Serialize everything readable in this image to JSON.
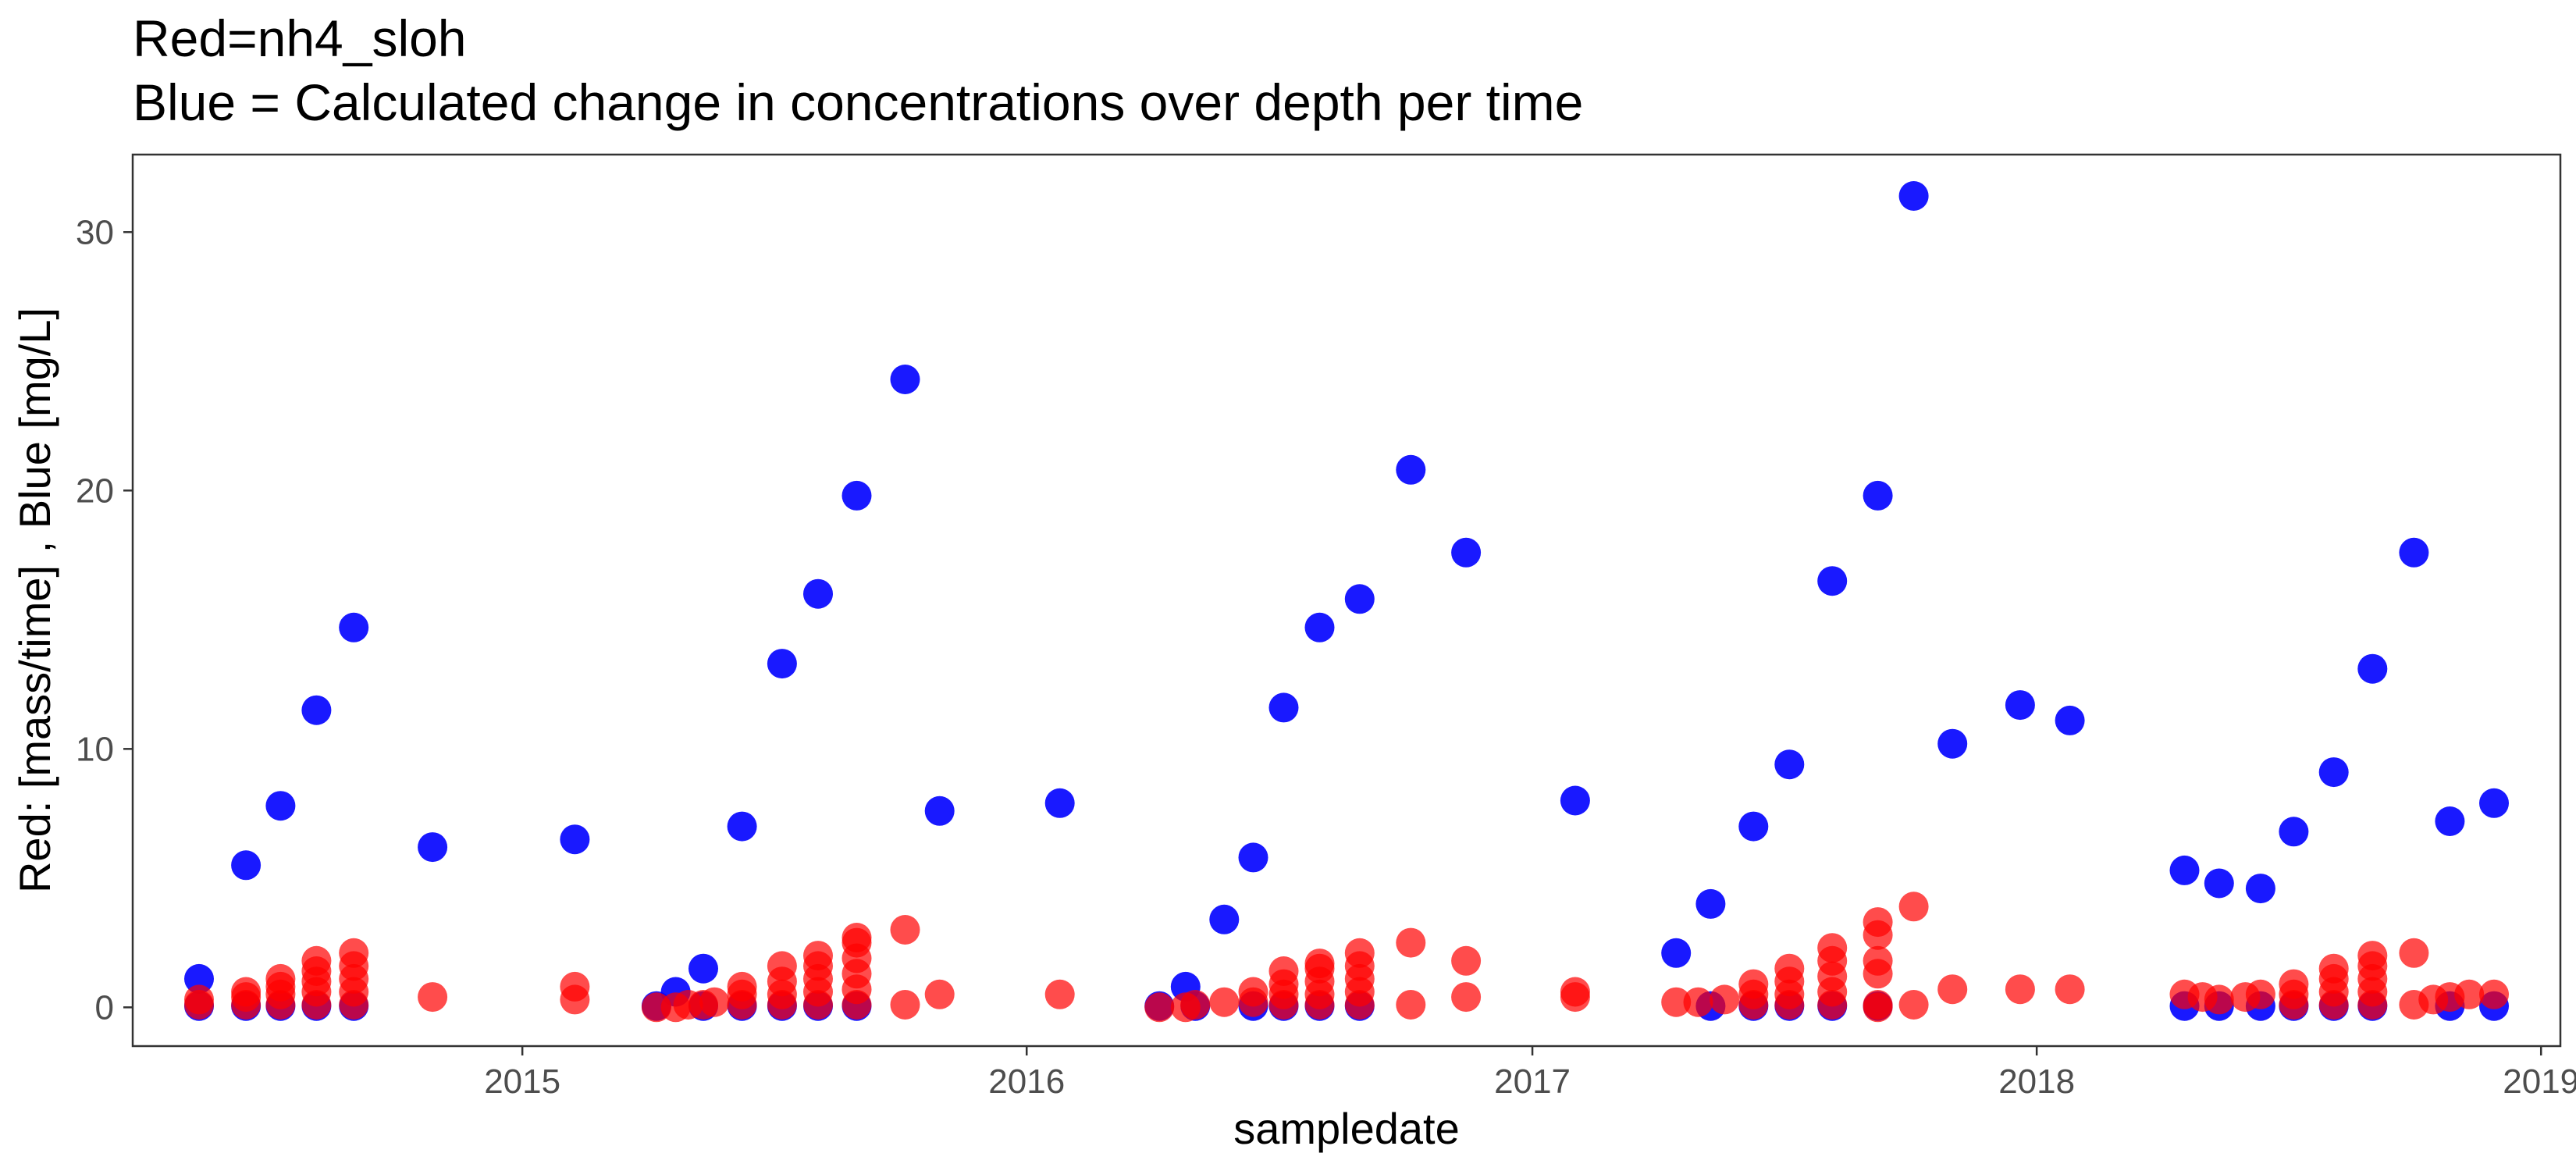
{
  "chart_data": {
    "type": "scatter",
    "title": "Red=nh4_sloh",
    "subtitle": "Blue = Calculated change in concentrations over depth per time",
    "xlabel": "sampledate",
    "ylabel": "Red: [mass/time] , Blue [mg/L]",
    "x_ticks": [
      "2015",
      "2016",
      "2017",
      "2018",
      "2019"
    ],
    "y_ticks": [
      0,
      10,
      20,
      30
    ],
    "xlim": [
      "2014-03-25",
      "2019-01-15"
    ],
    "ylim": [
      -1.5,
      33
    ],
    "grid": false,
    "legend": "none",
    "series": [
      {
        "color": "#0000ff",
        "points": [
          [
            "2014-05-12",
            1.1
          ],
          [
            "2014-06-15",
            5.5
          ],
          [
            "2014-07-10",
            7.8
          ],
          [
            "2014-08-05",
            11.5
          ],
          [
            "2014-09-01",
            14.7
          ],
          [
            "2014-10-28",
            6.2
          ],
          [
            "2015-02-08",
            6.5
          ],
          [
            "2015-04-22",
            0.6
          ],
          [
            "2015-05-12",
            1.5
          ],
          [
            "2015-06-09",
            7.0
          ],
          [
            "2015-07-08",
            13.3
          ],
          [
            "2015-08-03",
            16.0
          ],
          [
            "2015-08-31",
            19.8
          ],
          [
            "2015-10-05",
            24.3
          ],
          [
            "2015-10-30",
            7.6
          ],
          [
            "2016-01-25",
            7.9
          ],
          [
            "2016-04-25",
            0.8
          ],
          [
            "2016-05-23",
            3.4
          ],
          [
            "2016-06-13",
            5.8
          ],
          [
            "2016-07-05",
            11.6
          ],
          [
            "2016-07-31",
            14.7
          ],
          [
            "2016-08-29",
            15.8
          ],
          [
            "2016-10-05",
            20.8
          ],
          [
            "2016-11-14",
            17.6
          ],
          [
            "2017-02-01",
            8.0
          ],
          [
            "2017-04-15",
            2.1
          ],
          [
            "2017-05-10",
            4.0
          ],
          [
            "2017-06-10",
            7.0
          ],
          [
            "2017-07-06",
            9.4
          ],
          [
            "2017-08-06",
            16.5
          ],
          [
            "2017-09-08",
            19.8
          ],
          [
            "2017-10-04",
            31.4
          ],
          [
            "2017-11-01",
            10.2
          ],
          [
            "2017-12-20",
            11.7
          ],
          [
            "2018-01-25",
            11.1
          ],
          [
            "2018-04-18",
            5.3
          ],
          [
            "2018-05-13",
            4.8
          ],
          [
            "2018-06-12",
            4.6
          ],
          [
            "2018-07-06",
            6.8
          ],
          [
            "2018-08-04",
            9.1
          ],
          [
            "2018-09-01",
            13.1
          ],
          [
            "2018-10-01",
            17.6
          ],
          [
            "2018-10-27",
            7.2
          ],
          [
            "2018-11-28",
            7.9
          ],
          [
            "2014-05-12",
            0.05
          ],
          [
            "2014-06-15",
            0.05
          ],
          [
            "2014-07-10",
            0.05
          ],
          [
            "2014-08-05",
            0.05
          ],
          [
            "2014-09-01",
            0.05
          ],
          [
            "2015-04-08",
            0.05
          ],
          [
            "2015-05-12",
            0.05
          ],
          [
            "2015-06-09",
            0.05
          ],
          [
            "2015-07-08",
            0.05
          ],
          [
            "2015-08-03",
            0.05
          ],
          [
            "2015-08-31",
            0.05
          ],
          [
            "2016-04-06",
            0.05
          ],
          [
            "2016-05-02",
            0.05
          ],
          [
            "2016-06-13",
            0.05
          ],
          [
            "2016-07-05",
            0.05
          ],
          [
            "2016-07-31",
            0.05
          ],
          [
            "2016-08-29",
            0.05
          ],
          [
            "2017-05-10",
            0.05
          ],
          [
            "2017-06-10",
            0.05
          ],
          [
            "2017-07-06",
            0.05
          ],
          [
            "2017-08-06",
            0.05
          ],
          [
            "2017-09-08",
            0.05
          ],
          [
            "2018-04-18",
            0.05
          ],
          [
            "2018-05-13",
            0.05
          ],
          [
            "2018-06-12",
            0.05
          ],
          [
            "2018-07-06",
            0.05
          ],
          [
            "2018-08-04",
            0.05
          ],
          [
            "2018-09-01",
            0.05
          ],
          [
            "2018-10-27",
            0.05
          ],
          [
            "2018-11-28",
            0.05
          ]
        ]
      },
      {
        "color": "#ff0000",
        "points": [
          [
            "2014-05-12",
            0.1
          ],
          [
            "2014-05-12",
            0.3
          ],
          [
            "2014-06-15",
            0.1
          ],
          [
            "2014-06-15",
            0.4
          ],
          [
            "2014-06-15",
            0.6
          ],
          [
            "2014-07-10",
            0.1
          ],
          [
            "2014-07-10",
            0.5
          ],
          [
            "2014-07-10",
            0.8
          ],
          [
            "2014-07-10",
            1.1
          ],
          [
            "2014-08-05",
            0.1
          ],
          [
            "2014-08-05",
            0.6
          ],
          [
            "2014-08-05",
            1.0
          ],
          [
            "2014-08-05",
            1.4
          ],
          [
            "2014-08-05",
            1.8
          ],
          [
            "2014-09-01",
            0.1
          ],
          [
            "2014-09-01",
            0.6
          ],
          [
            "2014-09-01",
            1.1
          ],
          [
            "2014-09-01",
            1.6
          ],
          [
            "2014-09-01",
            2.1
          ],
          [
            "2014-10-28",
            0.4
          ],
          [
            "2015-02-08",
            0.3
          ],
          [
            "2015-02-08",
            0.8
          ],
          [
            "2015-04-08",
            0.0
          ],
          [
            "2015-04-22",
            0.0
          ],
          [
            "2015-05-01",
            0.1
          ],
          [
            "2015-05-12",
            0.1
          ],
          [
            "2015-05-20",
            0.2
          ],
          [
            "2015-06-09",
            0.1
          ],
          [
            "2015-06-09",
            0.5
          ],
          [
            "2015-06-09",
            0.8
          ],
          [
            "2015-07-08",
            0.1
          ],
          [
            "2015-07-08",
            0.5
          ],
          [
            "2015-07-08",
            1.0
          ],
          [
            "2015-07-08",
            1.6
          ],
          [
            "2015-08-03",
            0.1
          ],
          [
            "2015-08-03",
            0.6
          ],
          [
            "2015-08-03",
            1.1
          ],
          [
            "2015-08-03",
            1.6
          ],
          [
            "2015-08-03",
            2.0
          ],
          [
            "2015-08-31",
            0.1
          ],
          [
            "2015-08-31",
            0.7
          ],
          [
            "2015-08-31",
            1.3
          ],
          [
            "2015-08-31",
            1.9
          ],
          [
            "2015-08-31",
            2.5
          ],
          [
            "2015-08-31",
            2.7
          ],
          [
            "2015-10-05",
            0.1
          ],
          [
            "2015-10-05",
            3.0
          ],
          [
            "2015-10-30",
            0.5
          ],
          [
            "2016-01-25",
            0.5
          ],
          [
            "2016-04-06",
            0.0
          ],
          [
            "2016-04-25",
            0.0
          ],
          [
            "2016-05-02",
            0.1
          ],
          [
            "2016-05-23",
            0.2
          ],
          [
            "2016-06-13",
            0.2
          ],
          [
            "2016-06-13",
            0.6
          ],
          [
            "2016-07-05",
            0.1
          ],
          [
            "2016-07-05",
            0.5
          ],
          [
            "2016-07-05",
            0.9
          ],
          [
            "2016-07-05",
            1.4
          ],
          [
            "2016-07-31",
            0.1
          ],
          [
            "2016-07-31",
            0.5
          ],
          [
            "2016-07-31",
            1.0
          ],
          [
            "2016-07-31",
            1.5
          ],
          [
            "2016-07-31",
            1.7
          ],
          [
            "2016-08-29",
            0.1
          ],
          [
            "2016-08-29",
            0.6
          ],
          [
            "2016-08-29",
            1.1
          ],
          [
            "2016-08-29",
            1.6
          ],
          [
            "2016-08-29",
            2.1
          ],
          [
            "2016-10-05",
            0.1
          ],
          [
            "2016-10-05",
            2.5
          ],
          [
            "2016-11-14",
            0.4
          ],
          [
            "2016-11-14",
            1.8
          ],
          [
            "2017-02-01",
            0.4
          ],
          [
            "2017-02-01",
            0.6
          ],
          [
            "2017-04-15",
            0.2
          ],
          [
            "2017-05-01",
            0.2
          ],
          [
            "2017-05-20",
            0.3
          ],
          [
            "2017-06-10",
            0.1
          ],
          [
            "2017-06-10",
            0.5
          ],
          [
            "2017-06-10",
            0.9
          ],
          [
            "2017-07-06",
            0.1
          ],
          [
            "2017-07-06",
            0.5
          ],
          [
            "2017-07-06",
            1.0
          ],
          [
            "2017-07-06",
            1.5
          ],
          [
            "2017-08-06",
            0.1
          ],
          [
            "2017-08-06",
            0.6
          ],
          [
            "2017-08-06",
            1.2
          ],
          [
            "2017-08-06",
            1.8
          ],
          [
            "2017-08-06",
            2.3
          ],
          [
            "2017-09-08",
            0.0
          ],
          [
            "2017-09-08",
            0.1
          ],
          [
            "2017-09-08",
            1.3
          ],
          [
            "2017-09-08",
            1.8
          ],
          [
            "2017-09-08",
            2.8
          ],
          [
            "2017-09-08",
            3.3
          ],
          [
            "2017-10-04",
            0.1
          ],
          [
            "2017-10-04",
            3.9
          ],
          [
            "2017-11-01",
            0.7
          ],
          [
            "2017-12-20",
            0.7
          ],
          [
            "2018-01-25",
            0.7
          ],
          [
            "2018-04-18",
            0.5
          ],
          [
            "2018-05-01",
            0.4
          ],
          [
            "2018-05-13",
            0.3
          ],
          [
            "2018-06-01",
            0.4
          ],
          [
            "2018-06-12",
            0.5
          ],
          [
            "2018-07-06",
            0.1
          ],
          [
            "2018-07-06",
            0.5
          ],
          [
            "2018-07-06",
            0.9
          ],
          [
            "2018-08-04",
            0.1
          ],
          [
            "2018-08-04",
            0.6
          ],
          [
            "2018-08-04",
            1.1
          ],
          [
            "2018-08-04",
            1.5
          ],
          [
            "2018-09-01",
            0.1
          ],
          [
            "2018-09-01",
            0.6
          ],
          [
            "2018-09-01",
            1.1
          ],
          [
            "2018-09-01",
            1.6
          ],
          [
            "2018-09-01",
            2.0
          ],
          [
            "2018-10-01",
            0.1
          ],
          [
            "2018-10-01",
            2.1
          ],
          [
            "2018-10-15",
            0.3
          ],
          [
            "2018-10-27",
            0.4
          ],
          [
            "2018-11-10",
            0.5
          ],
          [
            "2018-11-28",
            0.5
          ]
        ]
      }
    ]
  }
}
